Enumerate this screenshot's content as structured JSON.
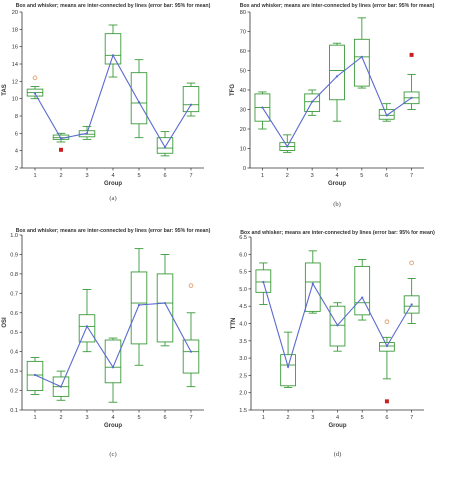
{
  "chart_data": [
    {
      "type": "box",
      "caption": "(a)",
      "title": "Box and whisker; means are inter-connected by lines (error bar: 95% for mean)",
      "xlabel": "Group",
      "ylabel": "TAS",
      "categories": [
        "1",
        "2",
        "3",
        "4",
        "5",
        "6",
        "7"
      ],
      "ylim": [
        2,
        20
      ],
      "yticks": [
        2,
        4,
        6,
        8,
        10,
        12,
        14,
        16,
        18,
        20
      ],
      "grid": false,
      "boxes": [
        {
          "min": 10.0,
          "q1": 10.3,
          "median": 10.7,
          "q3": 11.1,
          "max": 11.4,
          "mean": 10.6,
          "outliers": [
            {
              "y": 12.4,
              "marker": "o"
            }
          ]
        },
        {
          "min": 5.0,
          "q1": 5.3,
          "median": 5.5,
          "q3": 5.8,
          "max": 6.0,
          "mean": 5.4,
          "outliers": [
            {
              "y": 4.1,
              "marker": "s"
            }
          ]
        },
        {
          "min": 5.3,
          "q1": 5.6,
          "median": 5.9,
          "q3": 6.3,
          "max": 6.8,
          "mean": 6.0,
          "outliers": []
        },
        {
          "min": 12.5,
          "q1": 14.0,
          "median": 15.0,
          "q3": 17.5,
          "max": 18.5,
          "mean": 15.0,
          "outliers": []
        },
        {
          "min": 5.5,
          "q1": 7.1,
          "median": 9.5,
          "q3": 13.0,
          "max": 14.5,
          "mean": 9.6,
          "outliers": []
        },
        {
          "min": 3.4,
          "q1": 3.7,
          "median": 4.3,
          "q3": 5.5,
          "max": 6.2,
          "mean": 4.4,
          "outliers": []
        },
        {
          "min": 8.0,
          "q1": 8.5,
          "median": 9.3,
          "q3": 11.4,
          "max": 11.8,
          "mean": 9.3,
          "outliers": []
        }
      ]
    },
    {
      "type": "box",
      "caption": "(b)",
      "title": "Box and whisker; means are inter-connected by lines (error bar: 95% for mean)",
      "xlabel": "Group",
      "ylabel": "TFG",
      "categories": [
        "1",
        "2",
        "3",
        "4",
        "5",
        "6",
        "7"
      ],
      "ylim": [
        0,
        80
      ],
      "yticks": [
        0,
        10,
        20,
        30,
        40,
        50,
        60,
        70,
        80
      ],
      "grid": false,
      "boxes": [
        {
          "min": 20,
          "q1": 24,
          "median": 31,
          "q3": 38,
          "max": 39,
          "mean": 31,
          "outliers": []
        },
        {
          "min": 8,
          "q1": 9,
          "median": 11,
          "q3": 13,
          "max": 17,
          "mean": 11,
          "outliers": []
        },
        {
          "min": 27,
          "q1": 29,
          "median": 34,
          "q3": 38,
          "max": 40,
          "mean": 34,
          "outliers": []
        },
        {
          "min": 24,
          "q1": 35,
          "median": 50,
          "q3": 63,
          "max": 64,
          "mean": 47,
          "outliers": []
        },
        {
          "min": 41,
          "q1": 42,
          "median": 57,
          "q3": 66,
          "max": 77,
          "mean": 57,
          "outliers": []
        },
        {
          "min": 24,
          "q1": 25,
          "median": 27,
          "q3": 30,
          "max": 33,
          "mean": 27,
          "outliers": []
        },
        {
          "min": 30,
          "q1": 33,
          "median": 36,
          "q3": 39,
          "max": 48,
          "mean": 36,
          "outliers": [
            {
              "y": 58,
              "marker": "s"
            }
          ]
        }
      ]
    },
    {
      "type": "box",
      "caption": "(c)",
      "title": "Box and whisker; means are inter-connected by lines (error bar: 95% for mean)",
      "xlabel": "Group",
      "ylabel": "OSI",
      "categories": [
        "1",
        "2",
        "3",
        "4",
        "5",
        "6",
        "7"
      ],
      "ylim": [
        0.1,
        1.0
      ],
      "yticks": [
        0.1,
        0.2,
        0.3,
        0.4,
        0.5,
        0.6,
        0.7,
        0.8,
        0.9,
        1.0
      ],
      "grid": false,
      "boxes": [
        {
          "min": 0.18,
          "q1": 0.2,
          "median": 0.28,
          "q3": 0.35,
          "max": 0.37,
          "mean": 0.28,
          "outliers": []
        },
        {
          "min": 0.15,
          "q1": 0.17,
          "median": 0.22,
          "q3": 0.27,
          "max": 0.3,
          "mean": 0.22,
          "outliers": []
        },
        {
          "min": 0.4,
          "q1": 0.45,
          "median": 0.53,
          "q3": 0.59,
          "max": 0.72,
          "mean": 0.53,
          "outliers": []
        },
        {
          "min": 0.14,
          "q1": 0.24,
          "median": 0.32,
          "q3": 0.46,
          "max": 0.47,
          "mean": 0.32,
          "outliers": []
        },
        {
          "min": 0.33,
          "q1": 0.44,
          "median": 0.65,
          "q3": 0.81,
          "max": 0.93,
          "mean": 0.64,
          "outliers": []
        },
        {
          "min": 0.43,
          "q1": 0.45,
          "median": 0.65,
          "q3": 0.8,
          "max": 0.9,
          "mean": 0.65,
          "outliers": []
        },
        {
          "min": 0.22,
          "q1": 0.29,
          "median": 0.4,
          "q3": 0.46,
          "max": 0.6,
          "mean": 0.4,
          "outliers": [
            {
              "y": 0.74,
              "marker": "o"
            }
          ]
        }
      ]
    },
    {
      "type": "box",
      "caption": "(d)",
      "title": "Box and whisker; means are inter-connected by lines (error bar: 95% for mean)",
      "xlabel": "Group",
      "ylabel": "TTN",
      "categories": [
        "1",
        "2",
        "3",
        "4",
        "5",
        "6",
        "7"
      ],
      "ylim": [
        1.5,
        6.5
      ],
      "yticks": [
        1.5,
        2.0,
        2.5,
        3.0,
        3.5,
        4.0,
        4.5,
        5.0,
        5.5,
        6.0,
        6.5
      ],
      "grid": false,
      "boxes": [
        {
          "min": 4.55,
          "q1": 4.9,
          "median": 5.2,
          "q3": 5.55,
          "max": 5.75,
          "mean": 5.2,
          "outliers": []
        },
        {
          "min": 2.15,
          "q1": 2.2,
          "median": 2.8,
          "q3": 3.1,
          "max": 3.75,
          "mean": 2.75,
          "outliers": []
        },
        {
          "min": 4.3,
          "q1": 4.35,
          "median": 5.2,
          "q3": 5.75,
          "max": 6.1,
          "mean": 5.15,
          "outliers": []
        },
        {
          "min": 3.2,
          "q1": 3.35,
          "median": 3.95,
          "q3": 4.5,
          "max": 4.6,
          "mean": 3.95,
          "outliers": []
        },
        {
          "min": 4.1,
          "q1": 4.25,
          "median": 4.6,
          "q3": 5.65,
          "max": 5.85,
          "mean": 4.75,
          "outliers": []
        },
        {
          "min": 2.4,
          "q1": 3.2,
          "median": 3.35,
          "q3": 3.45,
          "max": 3.6,
          "mean": 3.35,
          "outliers": [
            {
              "y": 4.05,
              "marker": "o"
            },
            {
              "y": 1.75,
              "marker": "s"
            }
          ]
        },
        {
          "min": 4.0,
          "q1": 4.3,
          "median": 4.5,
          "q3": 4.8,
          "max": 5.3,
          "mean": 4.55,
          "outliers": [
            {
              "y": 5.75,
              "marker": "o"
            }
          ]
        }
      ]
    }
  ],
  "colors": {
    "box": "#3a9a3a",
    "mean_line": "#5a6ad0",
    "axis": "#333333",
    "outlier_circle": "#e0a070",
    "outlier_square": "#cc2020"
  }
}
